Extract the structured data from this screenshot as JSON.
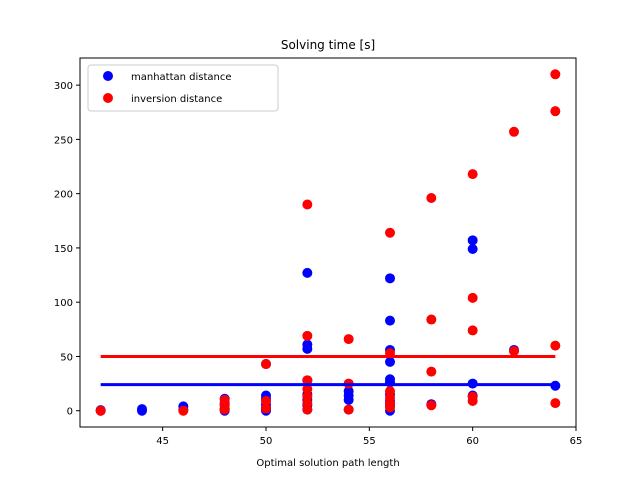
{
  "chart_data": {
    "type": "scatter",
    "title": "Solving time [s]",
    "xlabel": "Optimal solution path length",
    "ylabel": "",
    "xlim": [
      41,
      65
    ],
    "ylim": [
      -15,
      325
    ],
    "xticks": [
      45,
      50,
      55,
      60,
      65
    ],
    "yticks": [
      0,
      50,
      100,
      150,
      200,
      250,
      300
    ],
    "grid": false,
    "legend_position": "top-left",
    "series": [
      {
        "name": "manhattan distance",
        "color": "#0000ff",
        "points": [
          [
            42,
            0
          ],
          [
            42,
            0.5
          ],
          [
            44,
            0
          ],
          [
            44,
            1.5
          ],
          [
            46,
            4
          ],
          [
            46,
            1
          ],
          [
            48,
            11
          ],
          [
            48,
            7
          ],
          [
            48,
            5
          ],
          [
            48,
            2
          ],
          [
            48,
            1
          ],
          [
            48,
            0
          ],
          [
            50,
            14
          ],
          [
            50,
            11
          ],
          [
            50,
            6
          ],
          [
            50,
            3
          ],
          [
            50,
            1
          ],
          [
            50,
            0
          ],
          [
            50,
            43
          ],
          [
            52,
            127
          ],
          [
            52,
            61
          ],
          [
            52,
            57
          ],
          [
            52,
            28
          ],
          [
            52,
            15
          ],
          [
            52,
            10
          ],
          [
            52,
            5
          ],
          [
            52,
            1
          ],
          [
            54,
            18
          ],
          [
            54,
            14
          ],
          [
            54,
            10
          ],
          [
            54,
            1
          ],
          [
            56,
            122
          ],
          [
            56,
            83
          ],
          [
            56,
            56
          ],
          [
            56,
            45
          ],
          [
            56,
            29
          ],
          [
            56,
            26
          ],
          [
            56,
            15
          ],
          [
            56,
            9
          ],
          [
            56,
            5
          ],
          [
            56,
            0
          ],
          [
            58,
            6
          ],
          [
            60,
            157
          ],
          [
            60,
            149
          ],
          [
            60,
            25
          ],
          [
            60,
            14
          ],
          [
            62,
            56
          ],
          [
            64,
            23
          ]
        ],
        "mean_line": 24
      },
      {
        "name": "inversion distance",
        "color": "#ff0000",
        "points": [
          [
            42,
            0
          ],
          [
            46,
            0
          ],
          [
            48,
            10
          ],
          [
            48,
            5
          ],
          [
            48,
            2
          ],
          [
            48,
            1
          ],
          [
            50,
            43
          ],
          [
            50,
            9
          ],
          [
            50,
            2
          ],
          [
            52,
            190
          ],
          [
            52,
            69
          ],
          [
            52,
            28
          ],
          [
            52,
            20
          ],
          [
            52,
            13
          ],
          [
            52,
            7
          ],
          [
            52,
            1
          ],
          [
            54,
            66
          ],
          [
            54,
            25
          ],
          [
            54,
            1
          ],
          [
            56,
            164
          ],
          [
            56,
            53
          ],
          [
            56,
            18
          ],
          [
            56,
            12
          ],
          [
            56,
            7
          ],
          [
            56,
            3
          ],
          [
            58,
            196
          ],
          [
            58,
            84
          ],
          [
            58,
            36
          ],
          [
            58,
            5
          ],
          [
            60,
            218
          ],
          [
            60,
            104
          ],
          [
            60,
            74
          ],
          [
            60,
            13
          ],
          [
            60,
            9
          ],
          [
            62,
            257
          ],
          [
            62,
            55
          ],
          [
            64,
            310
          ],
          [
            64,
            276
          ],
          [
            64,
            60
          ],
          [
            64,
            7
          ]
        ],
        "mean_line": 50
      }
    ]
  }
}
